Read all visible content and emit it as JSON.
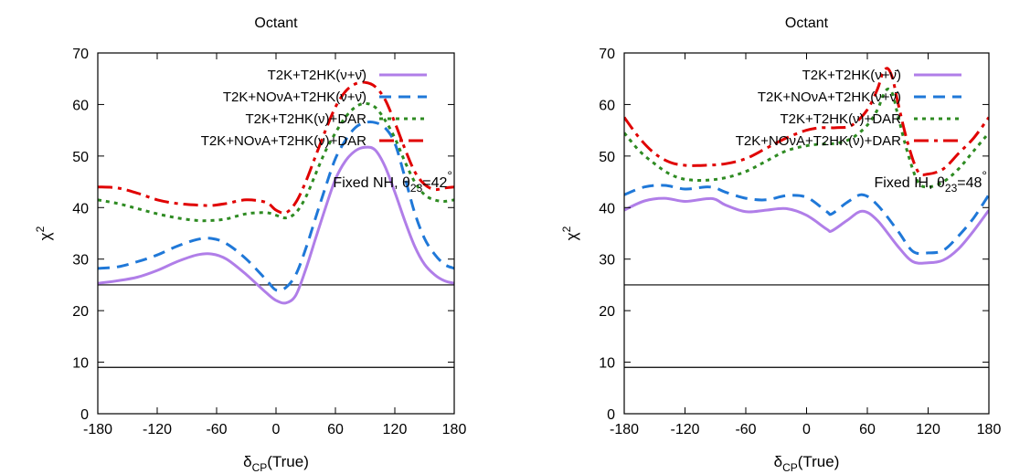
{
  "chart_data": [
    {
      "type": "line",
      "title": "Octant",
      "xlabel": "δCP(True)",
      "ylabel": "χ2",
      "xlim": [
        -180,
        180
      ],
      "ylim": [
        0,
        70
      ],
      "xticks": [
        "-180",
        "-120",
        "-60",
        "0",
        "60",
        "120",
        "180"
      ],
      "yticks": [
        "0",
        "10",
        "20",
        "30",
        "40",
        "50",
        "60",
        "70"
      ],
      "annotation": "Fixed NH, θ23=42°",
      "reference_lines": [
        9,
        25
      ],
      "legend_position": "top-right",
      "series": [
        {
          "name": "T2K+T2HK(ν+ν̄)",
          "color": "#b07ee8",
          "dash": "solid",
          "x": [
            -180,
            -160,
            -140,
            -120,
            -100,
            -80,
            -65,
            -50,
            -30,
            -10,
            0,
            10,
            20,
            30,
            40,
            50,
            60,
            70,
            80,
            90,
            100,
            110,
            120,
            130,
            140,
            150,
            160,
            170,
            180
          ],
          "y": [
            25.3,
            25.8,
            26.5,
            27.8,
            29.5,
            30.8,
            31.0,
            30.0,
            27.0,
            23.5,
            22.0,
            21.5,
            23.0,
            28.0,
            34.0,
            40.0,
            45.5,
            49.0,
            51.0,
            51.7,
            51.2,
            48.0,
            43.0,
            37.5,
            32.5,
            29.0,
            27.0,
            25.8,
            25.3
          ]
        },
        {
          "name": "T2K+NOνA+T2HK(ν+ν̄)",
          "color": "#1f78d8",
          "dash": "dashed",
          "x": [
            -180,
            -160,
            -140,
            -120,
            -100,
            -80,
            -65,
            -50,
            -30,
            -10,
            0,
            10,
            20,
            30,
            40,
            50,
            60,
            70,
            80,
            90,
            100,
            110,
            120,
            130,
            140,
            150,
            160,
            170,
            180
          ],
          "y": [
            28.2,
            28.5,
            29.5,
            30.8,
            32.5,
            33.8,
            34.0,
            33.0,
            30.0,
            26.0,
            24.0,
            24.5,
            27.0,
            32.0,
            38.0,
            44.0,
            49.5,
            53.0,
            55.5,
            56.5,
            56.5,
            55.5,
            52.5,
            46.0,
            39.0,
            34.0,
            31.0,
            29.0,
            28.2
          ]
        },
        {
          "name": "T2K+T2HK(ν)+DAR",
          "color": "#2e8b22",
          "dash": "dotted",
          "x": [
            -180,
            -160,
            -140,
            -120,
            -100,
            -80,
            -65,
            -50,
            -30,
            -10,
            0,
            10,
            20,
            30,
            40,
            50,
            60,
            70,
            80,
            90,
            100,
            110,
            120,
            130,
            140,
            150,
            160,
            170,
            180
          ],
          "y": [
            41.5,
            40.8,
            39.8,
            38.8,
            38.0,
            37.5,
            37.5,
            37.8,
            38.8,
            39.0,
            38.5,
            38.0,
            39.0,
            42.0,
            46.5,
            51.0,
            54.5,
            57.5,
            59.5,
            60.2,
            59.5,
            57.0,
            53.5,
            49.0,
            45.0,
            42.5,
            41.5,
            41.2,
            41.5
          ]
        },
        {
          "name": "T2K+NOνA+T2HK(ν)+DAR",
          "color": "#e00000",
          "dash": "dashdot",
          "x": [
            -180,
            -160,
            -140,
            -120,
            -100,
            -80,
            -65,
            -50,
            -30,
            -10,
            0,
            10,
            20,
            30,
            40,
            50,
            60,
            70,
            80,
            90,
            100,
            110,
            120,
            130,
            140,
            150,
            160,
            170,
            180
          ],
          "y": [
            44.0,
            43.8,
            42.8,
            41.5,
            40.8,
            40.5,
            40.4,
            40.8,
            41.5,
            41.0,
            39.5,
            39.0,
            41.0,
            45.0,
            50.0,
            55.0,
            59.5,
            62.5,
            64.0,
            64.3,
            63.5,
            61.0,
            56.5,
            51.5,
            47.0,
            44.5,
            43.5,
            43.8,
            44.0
          ]
        }
      ]
    },
    {
      "type": "line",
      "title": "Octant",
      "xlabel": "δCP(True)",
      "ylabel": "χ2",
      "xlim": [
        -180,
        180
      ],
      "ylim": [
        0,
        70
      ],
      "xticks": [
        "-180",
        "-120",
        "-60",
        "0",
        "60",
        "120",
        "180"
      ],
      "yticks": [
        "0",
        "10",
        "20",
        "30",
        "40",
        "50",
        "60",
        "70"
      ],
      "annotation": "Fixed IH, θ23=48°",
      "reference_lines": [
        9,
        25
      ],
      "legend_position": "top-right",
      "series": [
        {
          "name": "T2K+T2HK(ν+ν̄)",
          "color": "#b07ee8",
          "dash": "solid",
          "x": [
            -180,
            -160,
            -140,
            -120,
            -100,
            -90,
            -80,
            -60,
            -40,
            -20,
            0,
            20,
            25,
            40,
            55,
            70,
            90,
            105,
            120,
            135,
            150,
            165,
            180
          ],
          "y": [
            39.5,
            41.3,
            41.8,
            41.2,
            41.7,
            41.6,
            40.5,
            39.2,
            39.5,
            39.8,
            38.5,
            35.8,
            35.5,
            37.5,
            39.3,
            37.5,
            32.5,
            29.5,
            29.3,
            29.8,
            32.0,
            35.5,
            39.5
          ]
        },
        {
          "name": "T2K+NOνA+T2HK(ν+ν̄)",
          "color": "#1f78d8",
          "dash": "dashed",
          "x": [
            -180,
            -160,
            -140,
            -120,
            -100,
            -90,
            -80,
            -60,
            -40,
            -20,
            0,
            20,
            25,
            40,
            55,
            70,
            90,
            105,
            120,
            135,
            150,
            165,
            180
          ],
          "y": [
            42.5,
            44.0,
            44.3,
            43.6,
            44.0,
            43.8,
            43.0,
            41.8,
            41.5,
            42.3,
            42.0,
            39.2,
            38.8,
            41.0,
            42.5,
            40.5,
            35.5,
            31.5,
            31.2,
            31.7,
            34.5,
            38.0,
            42.5
          ]
        },
        {
          "name": "T2K+T2HK(ν)+DAR",
          "color": "#2e8b22",
          "dash": "dotted",
          "x": [
            -180,
            -165,
            -150,
            -135,
            -120,
            -100,
            -80,
            -60,
            -40,
            -20,
            0,
            15,
            30,
            45,
            60,
            70,
            75,
            80,
            85,
            90,
            100,
            110,
            120,
            135,
            150,
            165,
            180
          ],
          "y": [
            54.5,
            51.0,
            48.5,
            46.5,
            45.5,
            45.3,
            45.8,
            47.0,
            49.0,
            51.0,
            52.0,
            52.3,
            52.5,
            53.5,
            56.0,
            59.0,
            61.5,
            63.0,
            62.0,
            58.0,
            50.5,
            45.0,
            44.0,
            45.0,
            47.5,
            51.0,
            54.5
          ]
        },
        {
          "name": "T2K+NOνA+T2HK(ν)+DAR",
          "color": "#e00000",
          "dash": "dashdot",
          "x": [
            -180,
            -165,
            -150,
            -135,
            -120,
            -100,
            -80,
            -60,
            -40,
            -20,
            0,
            15,
            30,
            45,
            60,
            70,
            75,
            80,
            85,
            90,
            100,
            110,
            120,
            135,
            150,
            165,
            180
          ],
          "y": [
            57.5,
            53.5,
            50.5,
            48.8,
            48.2,
            48.2,
            48.5,
            49.5,
            51.5,
            53.5,
            55.0,
            55.5,
            55.5,
            56.0,
            59.0,
            63.0,
            66.0,
            67.0,
            65.0,
            60.5,
            52.5,
            47.0,
            46.5,
            47.5,
            50.5,
            53.5,
            57.5
          ]
        }
      ]
    }
  ]
}
